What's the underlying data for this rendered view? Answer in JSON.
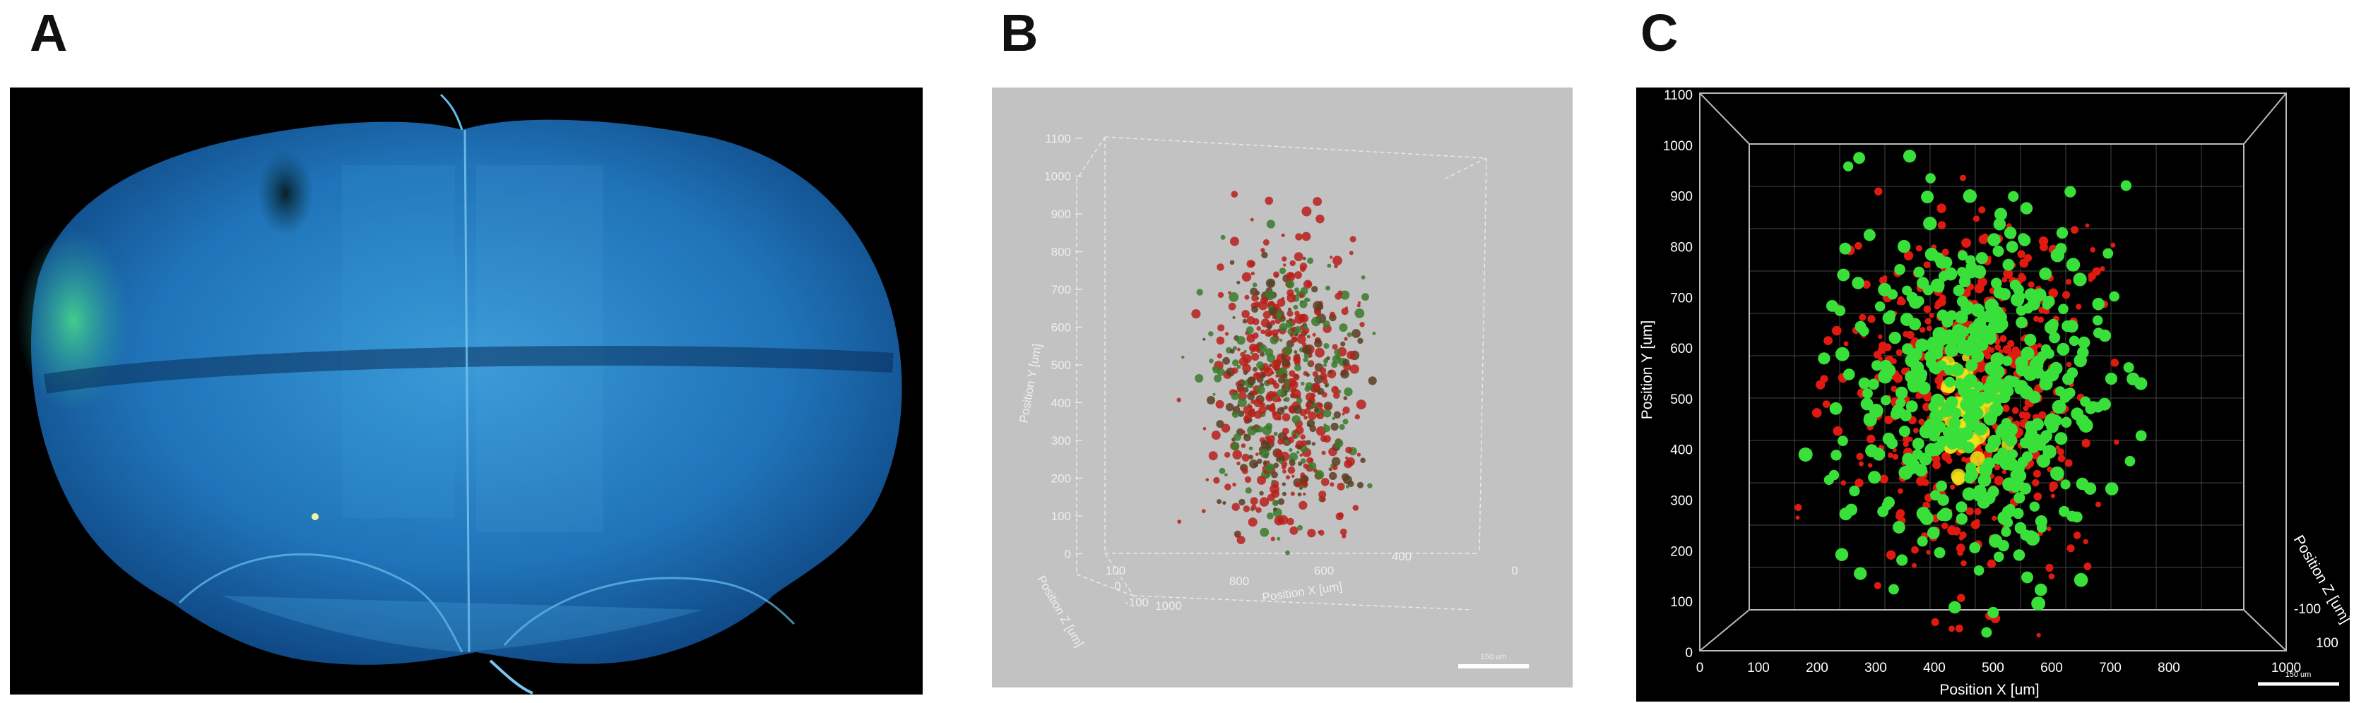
{
  "panels": {
    "a": {
      "letter": "A"
    },
    "b": {
      "letter": "B",
      "y_axis_label": "Position Y [um]",
      "y_ticks": [
        "1100",
        "1000",
        "900",
        "800",
        "700",
        "600",
        "500",
        "400",
        "300",
        "200",
        "100",
        "0"
      ],
      "x_axis_label": "Position X [um]",
      "x_ticks": [
        "1000",
        "800",
        "600",
        "400"
      ],
      "z_axis_label": "Position Z [um]",
      "z_ticks": [
        "100",
        "0",
        "-100"
      ],
      "right_tick": "0",
      "scale_bar_label": "150 um"
    },
    "c": {
      "letter": "C",
      "y_axis_label": "Position Y [um]",
      "y_ticks": [
        "1100",
        "1000",
        "900",
        "800",
        "700",
        "600",
        "500",
        "400",
        "300",
        "200",
        "100",
        "0"
      ],
      "x_axis_label": "Position X [um]",
      "x_ticks": [
        "0",
        "100",
        "200",
        "300",
        "400",
        "500",
        "600",
        "700",
        "800",
        "1000"
      ],
      "z_axis_label": "Position Z [um]",
      "z_ticks": [
        "-100",
        "100"
      ],
      "scale_bar_label": "150 um"
    }
  },
  "colors": {
    "tissue_blue": "#1f7fc4",
    "tissue_green": "#3fcf7a",
    "red_cells": "#e01a10",
    "green_cells": "#3ae03a",
    "yellow_overlap": "#f2e21a",
    "panel_b_background": "#c2c2c2",
    "panel_c_background": "#000000"
  }
}
